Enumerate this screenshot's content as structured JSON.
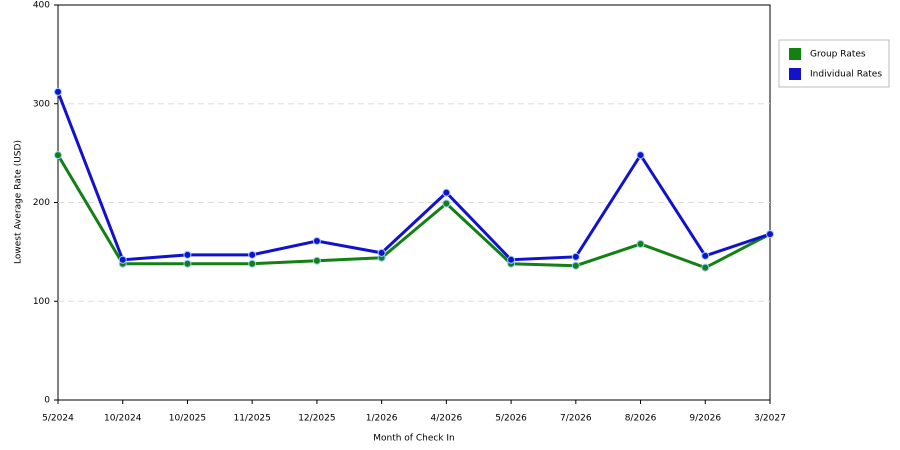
{
  "chart_data": {
    "type": "line",
    "x_label": "Month of Check In",
    "y_label": "Lowest Average Rate (USD)",
    "categories": [
      "5/2024",
      "10/2024",
      "10/2025",
      "11/2025",
      "12/2025",
      "1/2026",
      "4/2026",
      "5/2026",
      "7/2026",
      "8/2026",
      "9/2026",
      "3/2027"
    ],
    "series": [
      {
        "name": "Group Rates",
        "color": "#138013",
        "values": [
          248,
          138,
          138,
          138,
          141,
          144,
          199,
          138,
          136,
          158,
          134,
          168
        ]
      },
      {
        "name": "Individual Rates",
        "color": "#1212cc",
        "values": [
          312,
          142,
          147,
          147,
          161,
          149,
          210,
          142,
          145,
          248,
          146,
          168
        ]
      }
    ],
    "ylim": [
      0,
      400
    ],
    "yticks": [
      0,
      100,
      200,
      300,
      400
    ],
    "grid": true,
    "legend": "right"
  }
}
